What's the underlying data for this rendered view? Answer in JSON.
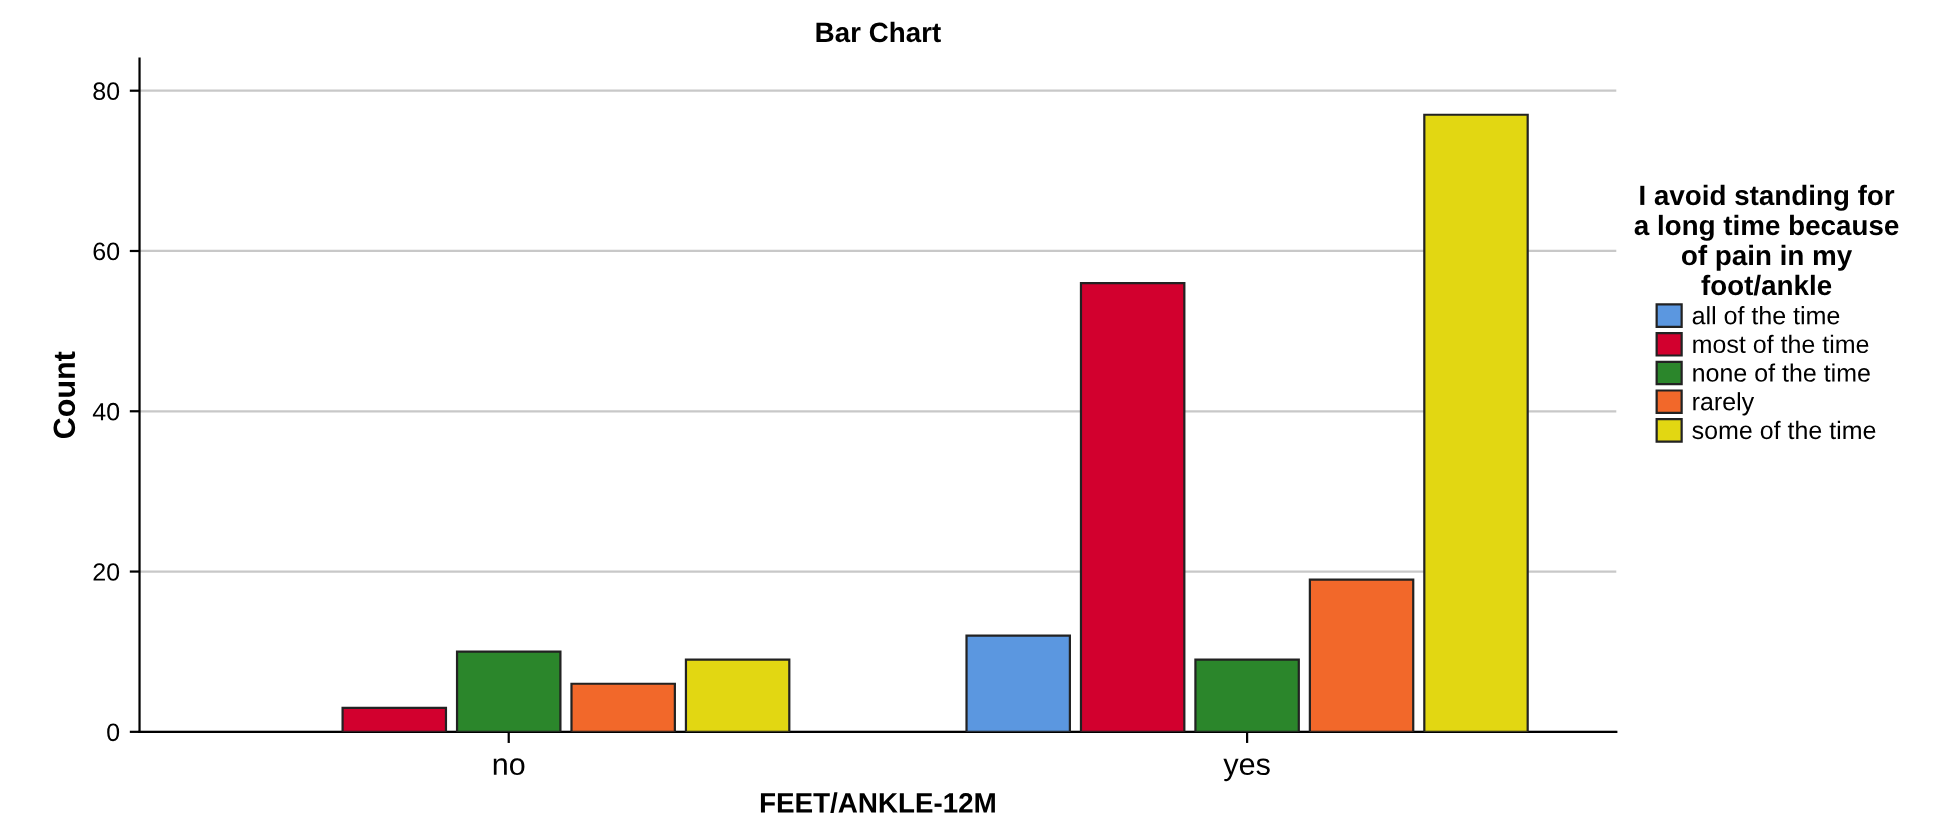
{
  "chart_data": {
    "type": "bar",
    "title": "Bar Chart",
    "xlabel": "FEET/ANKLE-12M",
    "ylabel": "Count",
    "legend_title": "I avoid standing for a long time because of pain in my foot/ankle",
    "categories": [
      "no",
      "yes"
    ],
    "series": [
      {
        "name": "all of the time",
        "color": "#5b97e0",
        "values": [
          null,
          12
        ]
      },
      {
        "name": "most of the time",
        "color": "#d2002e",
        "values": [
          3,
          56
        ]
      },
      {
        "name": "none of the time",
        "color": "#2b862b",
        "values": [
          10,
          9
        ]
      },
      {
        "name": "rarely",
        "color": "#f2682a",
        "values": [
          6,
          19
        ]
      },
      {
        "name": "some of the time",
        "color": "#e2d712",
        "values": [
          9,
          77
        ]
      }
    ],
    "ylim": [
      0,
      84
    ],
    "yticks": [
      0,
      20,
      40,
      60,
      80
    ],
    "grid": "y",
    "legend": "right"
  }
}
